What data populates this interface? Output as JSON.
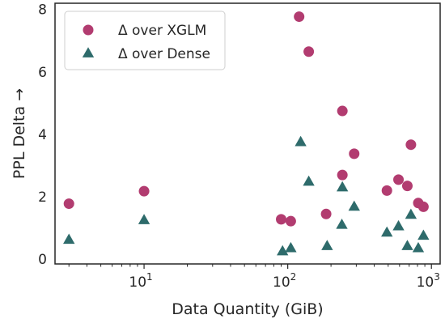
{
  "chart_data": {
    "type": "scatter",
    "xlabel": "Data Quantity (GiB)",
    "ylabel": "PPL Delta →",
    "xscale": "log",
    "xlim": [
      2.4,
      1150
    ],
    "ylim": [
      -0.15,
      8.2
    ],
    "x_ticks": [
      {
        "value": 10,
        "base": "10",
        "exp": "1"
      },
      {
        "value": 100,
        "base": "10",
        "exp": "2"
      },
      {
        "value": 1000,
        "base": "10",
        "exp": "3"
      }
    ],
    "y_ticks": [
      0,
      2,
      4,
      6,
      8
    ],
    "grid": false,
    "legend_position": "top-left",
    "series": [
      {
        "name": "Δ over XGLM",
        "marker": "circle",
        "color": "#b23c70",
        "points": [
          [
            3,
            1.78
          ],
          [
            10,
            2.18
          ],
          [
            90,
            1.28
          ],
          [
            105,
            1.22
          ],
          [
            120,
            7.77
          ],
          [
            140,
            6.65
          ],
          [
            185,
            1.45
          ],
          [
            240,
            4.75
          ],
          [
            240,
            2.7
          ],
          [
            290,
            3.38
          ],
          [
            490,
            2.2
          ],
          [
            590,
            2.55
          ],
          [
            680,
            2.35
          ],
          [
            720,
            3.67
          ],
          [
            810,
            1.8
          ],
          [
            880,
            1.68
          ]
        ]
      },
      {
        "name": "Δ over Dense",
        "marker": "triangle",
        "color": "#2e6b6b",
        "points": [
          [
            3,
            0.62
          ],
          [
            10,
            1.25
          ],
          [
            92,
            0.25
          ],
          [
            105,
            0.35
          ],
          [
            123,
            3.75
          ],
          [
            140,
            2.48
          ],
          [
            188,
            0.42
          ],
          [
            238,
            1.1
          ],
          [
            240,
            2.3
          ],
          [
            290,
            1.68
          ],
          [
            490,
            0.85
          ],
          [
            590,
            1.05
          ],
          [
            680,
            0.42
          ],
          [
            720,
            1.42
          ],
          [
            810,
            0.35
          ],
          [
            880,
            0.75
          ]
        ]
      }
    ]
  }
}
